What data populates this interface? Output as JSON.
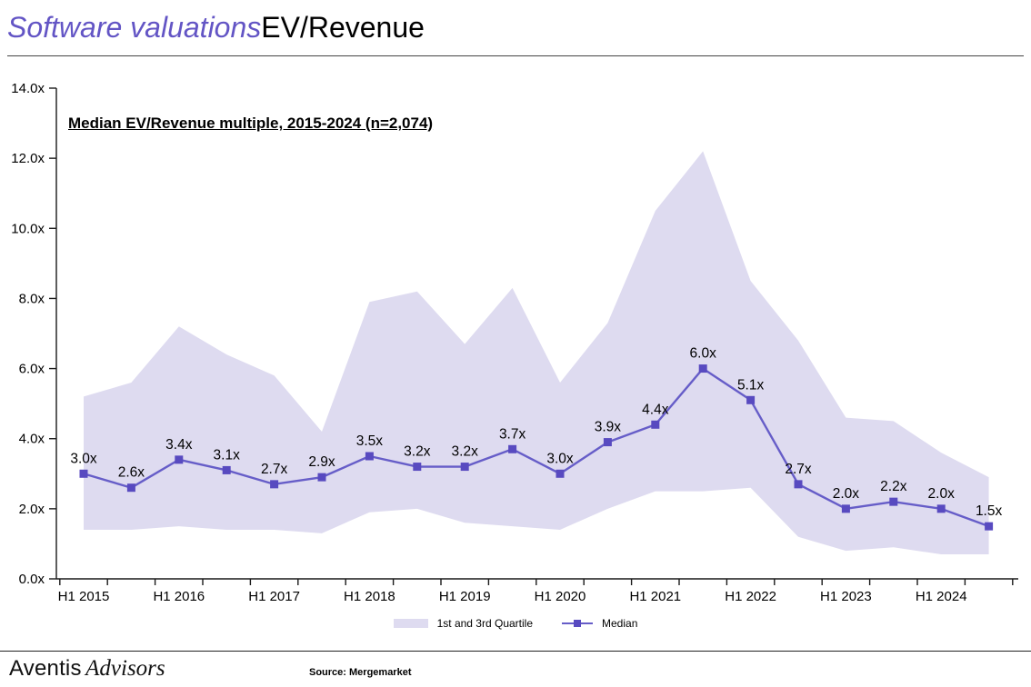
{
  "header": {
    "title_italic": "Software valuations",
    "title_regular": "EV/Revenue"
  },
  "chart_data": {
    "type": "line",
    "title": "Median EV/Revenue multiple, 2015-2024 (n=2,074)",
    "categories": [
      "H1 2015",
      "H2 2015",
      "H1 2016",
      "H2 2016",
      "H1 2017",
      "H2 2017",
      "H1 2018",
      "H2 2018",
      "H1 2019",
      "H2 2019",
      "H1 2020",
      "H2 2020",
      "H1 2021",
      "H2 2021",
      "H1 2022",
      "H2 2022",
      "H1 2023",
      "H2 2023",
      "H1 2024",
      "H2 2024"
    ],
    "x_axis_labels": [
      "H1 2015",
      "H1 2016",
      "H1 2017",
      "H1 2018",
      "H1 2019",
      "H1 2020",
      "H1 2021",
      "H1 2022",
      "H1 2023",
      "H1 2024"
    ],
    "series": [
      {
        "name": "Median",
        "values": [
          3.0,
          2.6,
          3.4,
          3.1,
          2.7,
          2.9,
          3.5,
          3.2,
          3.2,
          3.7,
          3.0,
          3.9,
          4.4,
          6.0,
          5.1,
          2.7,
          2.0,
          2.2,
          2.0,
          1.5
        ],
        "labels": [
          "3.0x",
          "2.6x",
          "3.4x",
          "3.1x",
          "2.7x",
          "2.9x",
          "3.5x",
          "3.2x",
          "3.2x",
          "3.7x",
          "3.0x",
          "3.9x",
          "4.4x",
          "6.0x",
          "5.1x",
          "2.7x",
          "2.0x",
          "2.2x",
          "2.0x",
          "1.5x"
        ]
      },
      {
        "name": "1st and 3rd Quartile",
        "upper": [
          5.2,
          5.6,
          7.2,
          6.4,
          5.8,
          4.2,
          7.9,
          8.2,
          6.7,
          8.3,
          5.6,
          7.3,
          10.5,
          12.2,
          8.5,
          6.8,
          4.6,
          4.5,
          3.6,
          2.9
        ],
        "lower": [
          1.4,
          1.4,
          1.5,
          1.4,
          1.4,
          1.3,
          1.9,
          2.0,
          1.6,
          1.5,
          1.4,
          2.0,
          2.5,
          2.5,
          2.6,
          1.2,
          0.8,
          0.9,
          0.7,
          0.7
        ]
      }
    ],
    "ylim": [
      0,
      14
    ],
    "y_tick_step": 2,
    "y_tick_labels": [
      "0.0x",
      "2.0x",
      "4.0x",
      "6.0x",
      "8.0x",
      "10.0x",
      "12.0x",
      "14.0x"
    ],
    "grid": false,
    "legend_position": "bottom",
    "colors": {
      "line": "#665dc8",
      "marker": "#584ac0",
      "band": "#dedbf0",
      "axis": "#1a1a1a",
      "title_accent": "#6355c5"
    }
  },
  "legend": {
    "band_label": "1st and 3rd Quartile",
    "median_label": "Median"
  },
  "footer": {
    "brand_regular": "Aventis",
    "brand_italic": "Advisors",
    "source": "Source: Mergemarket"
  }
}
